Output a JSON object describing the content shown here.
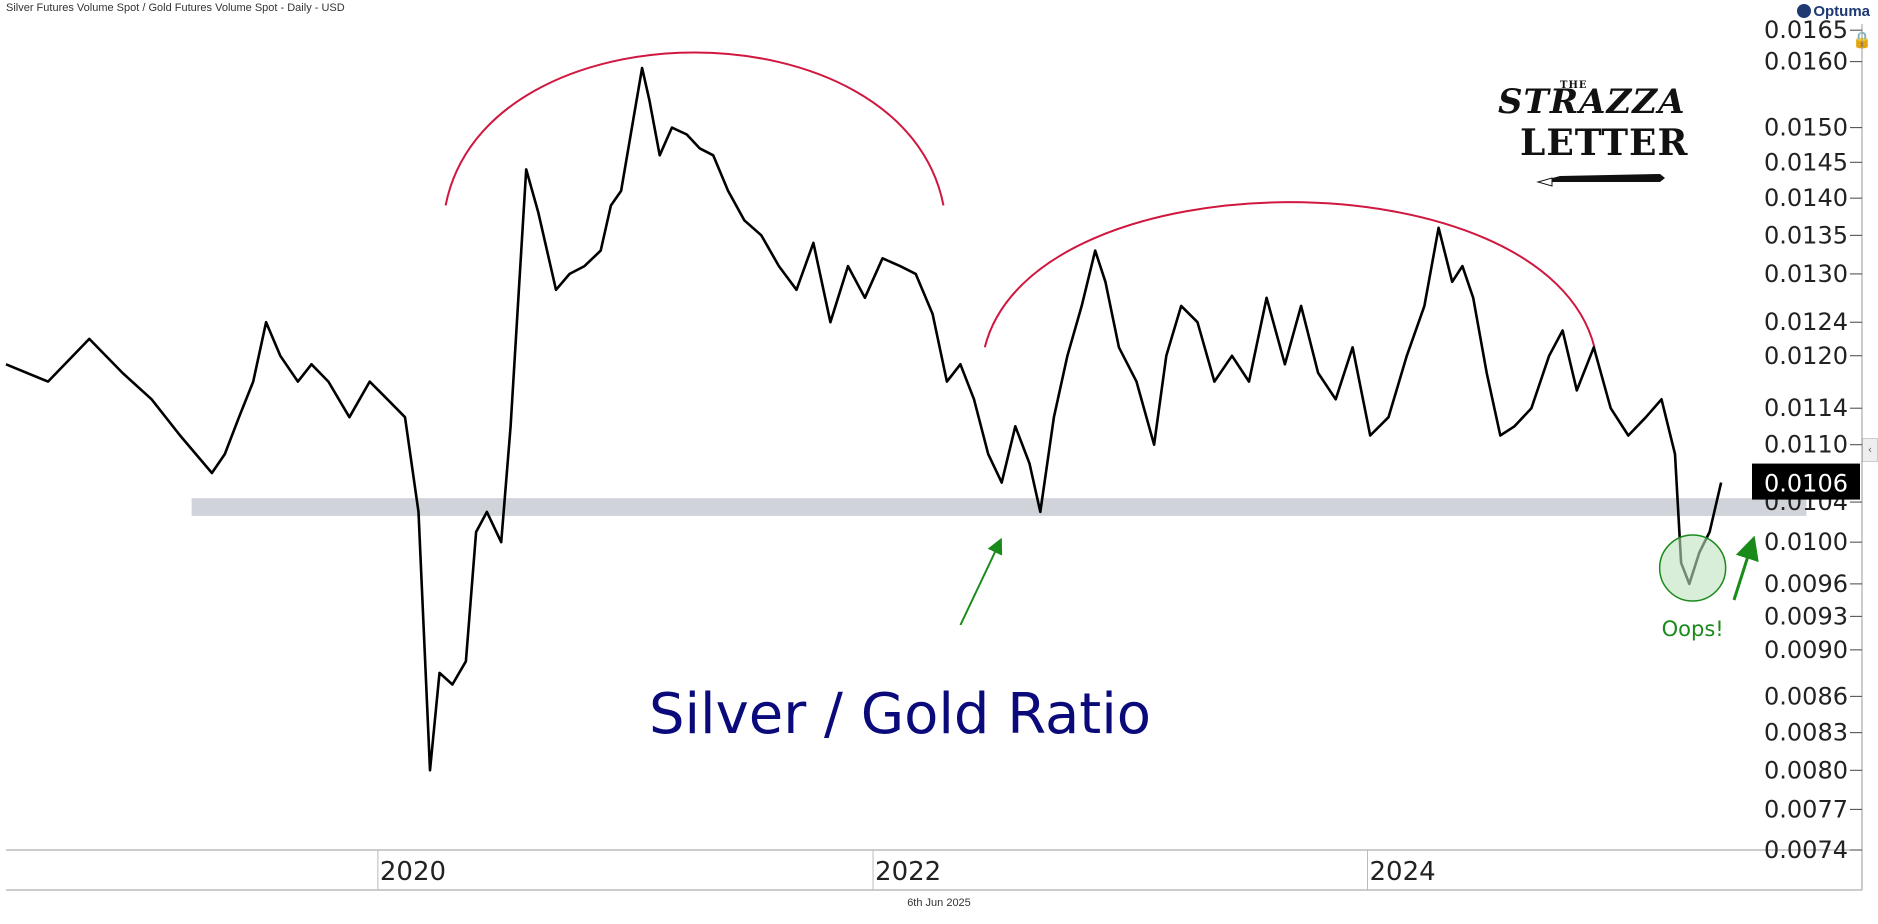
{
  "header": {
    "title": "Silver Futures Volume Spot / Gold Futures Volume Spot - Daily - USD",
    "brand": "Optuma"
  },
  "footer": {
    "date": "6th Jun 2025"
  },
  "logo": {
    "the": "THE",
    "strazza": "STRAZZA",
    "letter": "LETTER"
  },
  "colors": {
    "line": "#000000",
    "arc": "#d0173f",
    "support_band": "#c8cdd3",
    "annotation_green": "#1a8a1a",
    "title_text": "#0a0a7a",
    "last_badge_bg": "#000000"
  },
  "icons": {
    "lock": "lock-icon",
    "collapse": "chevron-left-icon"
  },
  "chart_data": {
    "type": "line",
    "title": "Silver / Gold Ratio",
    "yscale": "log",
    "ylim": [
      0.0074,
      0.0166
    ],
    "xlim": [
      "2018-07-01",
      "2025-12-31"
    ],
    "y_ticks": [
      "0.0165",
      "0.0160",
      "0.0150",
      "0.0145",
      "0.0140",
      "0.0135",
      "0.0130",
      "0.0124",
      "0.0120",
      "0.0114",
      "0.0110",
      "0.0104",
      "0.0100",
      "0.0096",
      "0.0093",
      "0.0090",
      "0.0086",
      "0.0083",
      "0.0080",
      "0.0077",
      "0.0074"
    ],
    "x_ticks": [
      "2020",
      "2022",
      "2024"
    ],
    "last_value": "0.0106",
    "grid": false,
    "support_band": [
      0.01026,
      0.01044
    ],
    "annotations": {
      "oops": "Oops!"
    },
    "series": [
      {
        "x": [
          "2018-07-01",
          "2018-09-01",
          "2018-11-01",
          "2018-12-20",
          "2019-02-01",
          "2019-03-15",
          "2019-05-01",
          "2019-05-20",
          "2019-06-10",
          "2019-07-01",
          "2019-07-20",
          "2019-08-10",
          "2019-09-05",
          "2019-09-25",
          "2019-10-20",
          "2019-11-20",
          "2019-12-20",
          "2020-01-15",
          "2020-02-10",
          "2020-03-01",
          "2020-03-18",
          "2020-04-01",
          "2020-04-20",
          "2020-05-10",
          "2020-05-25",
          "2020-06-10",
          "2020-07-01",
          "2020-07-15",
          "2020-07-25",
          "2020-08-07",
          "2020-08-25",
          "2020-09-20",
          "2020-10-10",
          "2020-11-01",
          "2020-11-25",
          "2020-12-10",
          "2020-12-25",
          "2021-01-10",
          "2021-01-25",
          "2021-02-05",
          "2021-02-20",
          "2021-03-10",
          "2021-04-01",
          "2021-04-20",
          "2021-05-10",
          "2021-06-01",
          "2021-06-25",
          "2021-07-20",
          "2021-08-15",
          "2021-09-10",
          "2021-10-05",
          "2021-10-30",
          "2021-11-25",
          "2021-12-20",
          "2022-01-15",
          "2022-02-10",
          "2022-03-05",
          "2022-03-30",
          "2022-04-20",
          "2022-05-10",
          "2022-05-30",
          "2022-06-20",
          "2022-07-10",
          "2022-07-30",
          "2022-08-20",
          "2022-09-05",
          "2022-09-25",
          "2022-10-15",
          "2022-11-05",
          "2022-11-25",
          "2022-12-10",
          "2022-12-30",
          "2023-01-25",
          "2023-02-20",
          "2023-03-10",
          "2023-04-01",
          "2023-04-25",
          "2023-05-20",
          "2023-06-15",
          "2023-07-10",
          "2023-08-05",
          "2023-09-01",
          "2023-09-25",
          "2023-10-20",
          "2023-11-15",
          "2023-12-10",
          "2024-01-05",
          "2024-02-01",
          "2024-02-28",
          "2024-03-25",
          "2024-04-15",
          "2024-05-05",
          "2024-05-20",
          "2024-06-05",
          "2024-06-25",
          "2024-07-15",
          "2024-08-05",
          "2024-08-30",
          "2024-09-25",
          "2024-10-15",
          "2024-11-05",
          "2024-11-30",
          "2024-12-25",
          "2025-01-20",
          "2025-02-15",
          "2025-03-10",
          "2025-03-30",
          "2025-04-08",
          "2025-04-20",
          "2025-05-05",
          "2025-05-20",
          "2025-06-06"
        ],
        "y": [
          0.0119,
          0.0117,
          0.0122,
          0.0118,
          0.0115,
          0.0111,
          0.0107,
          0.0109,
          0.0113,
          0.0117,
          0.0124,
          0.012,
          0.0117,
          0.0119,
          0.0117,
          0.0113,
          0.0117,
          0.0115,
          0.0113,
          0.0103,
          0.008,
          0.0088,
          0.0087,
          0.0089,
          0.0101,
          0.0103,
          0.01,
          0.0112,
          0.0125,
          0.0144,
          0.0138,
          0.0128,
          0.013,
          0.0131,
          0.0133,
          0.0139,
          0.0141,
          0.015,
          0.0159,
          0.0154,
          0.0146,
          0.015,
          0.0149,
          0.0147,
          0.0146,
          0.0141,
          0.0137,
          0.0135,
          0.0131,
          0.0128,
          0.0134,
          0.0124,
          0.0131,
          0.0127,
          0.0132,
          0.0131,
          0.013,
          0.0125,
          0.0117,
          0.0119,
          0.0115,
          0.0109,
          0.0106,
          0.0112,
          0.0108,
          0.0103,
          0.0113,
          0.012,
          0.0126,
          0.0133,
          0.0129,
          0.0121,
          0.0117,
          0.011,
          0.012,
          0.0126,
          0.0124,
          0.0117,
          0.012,
          0.0117,
          0.0127,
          0.0119,
          0.0126,
          0.0118,
          0.0115,
          0.0121,
          0.0111,
          0.0113,
          0.012,
          0.0126,
          0.0136,
          0.0129,
          0.0131,
          0.0127,
          0.0118,
          0.0111,
          0.0112,
          0.0114,
          0.012,
          0.0123,
          0.0116,
          0.0121,
          0.0114,
          0.0111,
          0.0113,
          0.0115,
          0.0109,
          0.0098,
          0.0096,
          0.0099,
          0.0101,
          0.0106
        ]
      }
    ]
  }
}
